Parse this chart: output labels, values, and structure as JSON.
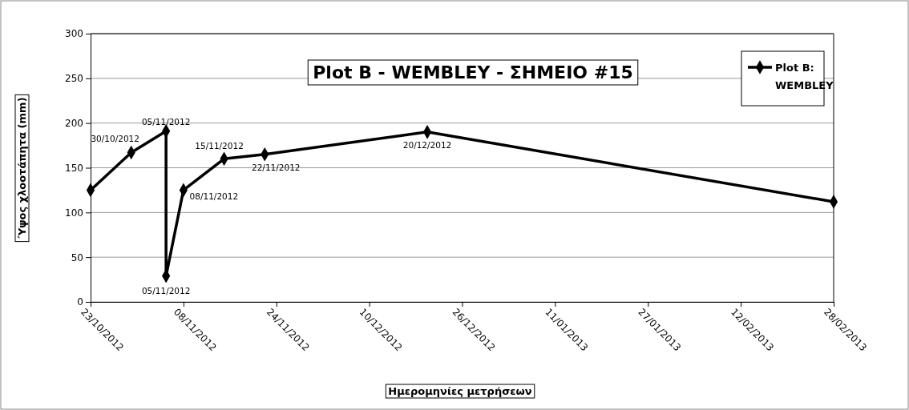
{
  "chart_data": {
    "type": "line",
    "title": "Plot B - WEMBLEY - ΣΗΜΕΙΟ #15",
    "xlabel": "Ημερομηνίες μετρήσεων",
    "ylabel": "Ύψος χλοοτάπητα (mm)",
    "x": [
      "2012-10-23",
      "2012-10-30",
      "2012-11-05",
      "2012-11-05",
      "2012-11-08",
      "2012-11-15",
      "2012-11-22",
      "2012-12-20",
      "2013-02-28"
    ],
    "series": [
      {
        "name": "Plot B: WEMBLEY",
        "color": "#000000",
        "values": [
          125,
          167,
          191,
          29,
          125,
          160,
          165,
          190,
          112
        ]
      }
    ],
    "xlim": [
      "2012-10-23",
      "2013-02-28"
    ],
    "xticks": [
      {
        "value": "2012-10-23",
        "label": "23/10/2012"
      },
      {
        "value": "2012-11-08",
        "label": "08/11/2012"
      },
      {
        "value": "2012-11-24",
        "label": "24/11/2012"
      },
      {
        "value": "2012-12-10",
        "label": "10/12/2012"
      },
      {
        "value": "2012-12-26",
        "label": "26/12/2012"
      },
      {
        "value": "2013-01-11",
        "label": "11/01/2013"
      },
      {
        "value": "2013-01-27",
        "label": "27/01/2013"
      },
      {
        "value": "2013-02-12",
        "label": "12/02/2013"
      },
      {
        "value": "2013-02-28",
        "label": "28/02/2013"
      }
    ],
    "ylim": [
      0,
      300
    ],
    "yticks": [
      0,
      50,
      100,
      150,
      200,
      250,
      300
    ],
    "grid": "y",
    "legend": "top right",
    "marker": "diamond",
    "line_style": "solid",
    "annotations": [
      {
        "text": "30/10/2012",
        "x": "2012-10-30",
        "y": 167
      },
      {
        "text": "05/11/2012",
        "x": "2012-11-05",
        "y": 191
      },
      {
        "text": "05/11/2012",
        "x": "2012-11-05",
        "y": 29
      },
      {
        "text": "08/11/2012",
        "x": "2012-11-08",
        "y": 125
      },
      {
        "text": "15/11/2012",
        "x": "2012-11-15",
        "y": 160
      },
      {
        "text": "22/11/2012",
        "x": "2012-11-22",
        "y": 165
      },
      {
        "text": "20/12/2012",
        "x": "2012-12-20",
        "y": 190
      }
    ]
  }
}
